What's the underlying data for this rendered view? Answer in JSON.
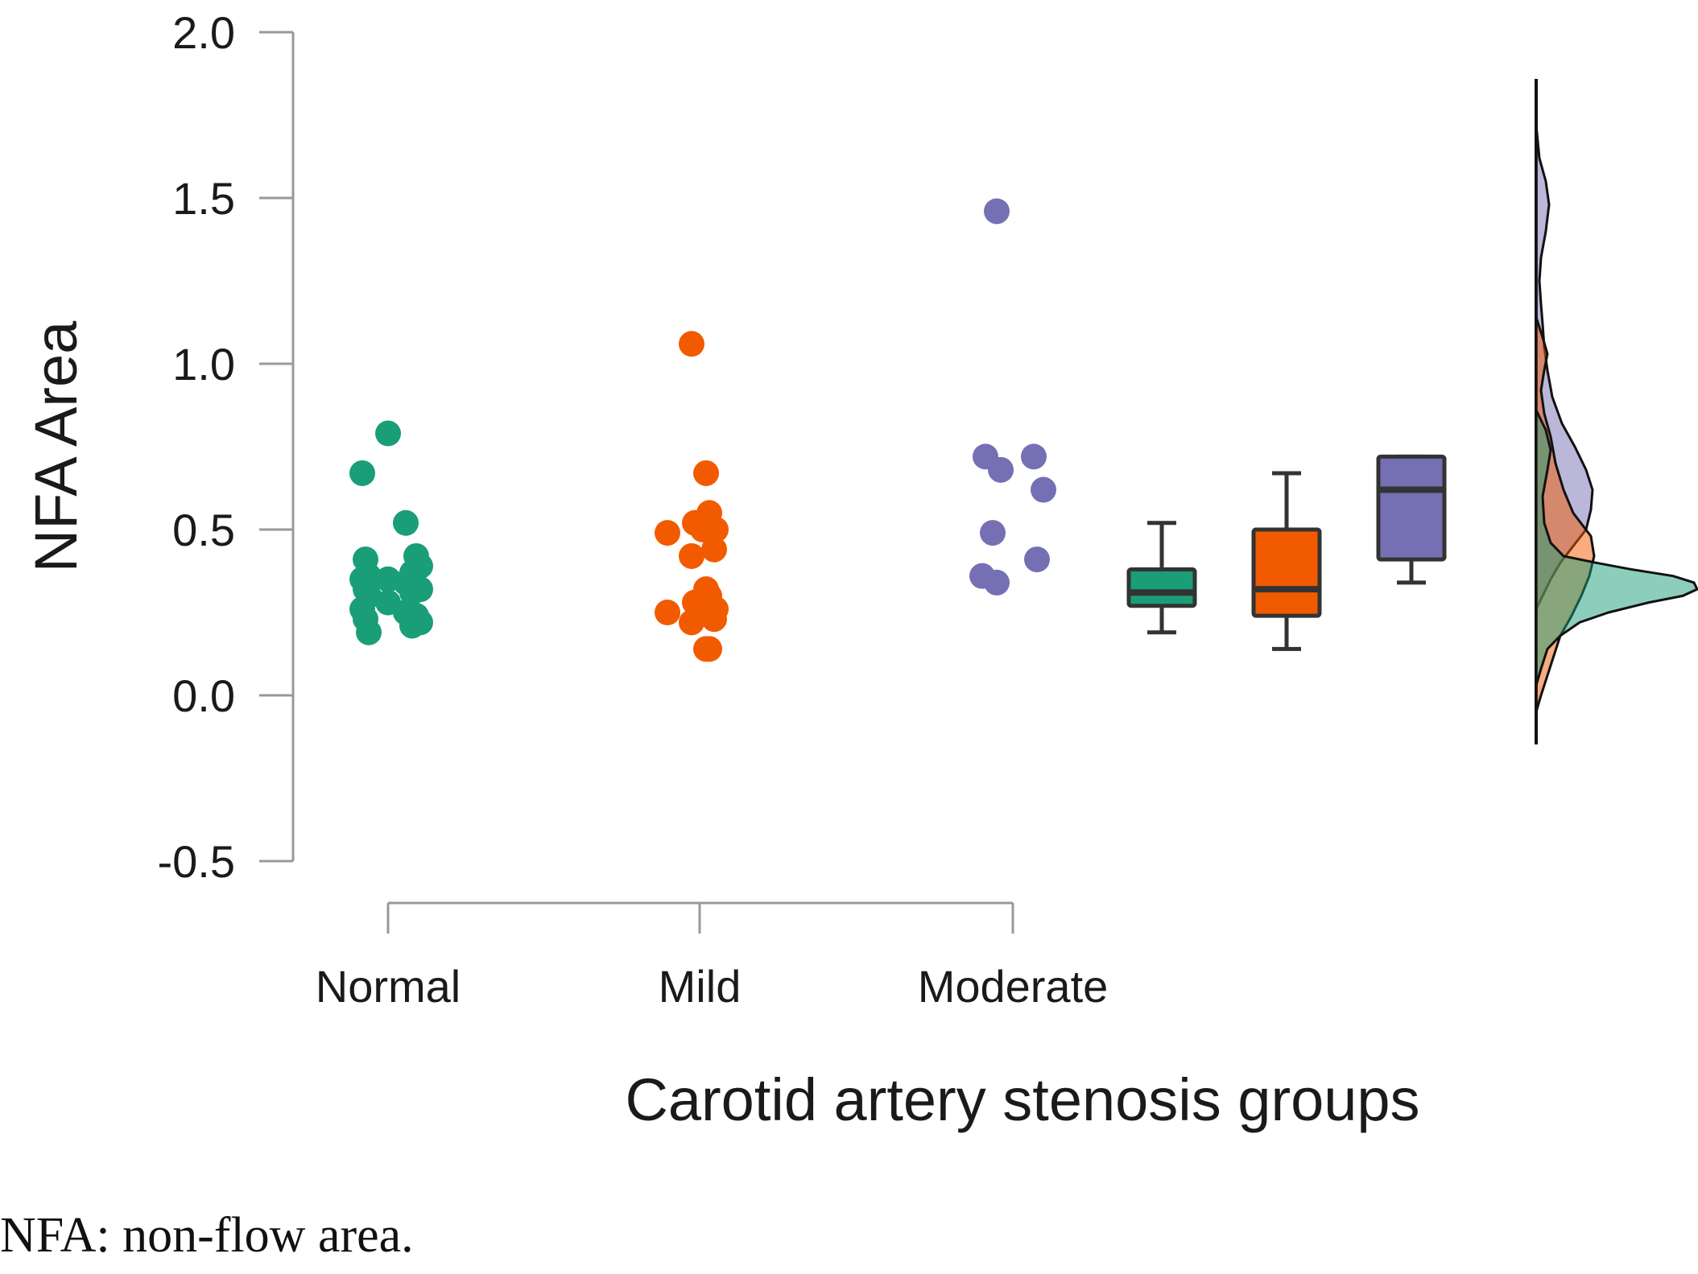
{
  "chart_data": {
    "type": "scatter",
    "title": "",
    "xlabel": "Carotid artery stenosis groups",
    "ylabel": "NFA Area",
    "ylim": [
      -0.5,
      2.0
    ],
    "yticks": [
      "2.0",
      "1.5",
      "1.0",
      "0.5",
      "0.0",
      "-0.5"
    ],
    "ytick_values": [
      2.0,
      1.5,
      1.0,
      0.5,
      0.0,
      -0.5
    ],
    "categories": [
      "Normal",
      "Mild",
      "Moderate"
    ],
    "grid": false,
    "legend": "none",
    "series": [
      {
        "name": "Normal",
        "color": "#1a9e77",
        "points": [
          0.79,
          0.67,
          0.52,
          0.42,
          0.41,
          0.39,
          0.37,
          0.36,
          0.35,
          0.35,
          0.34,
          0.33,
          0.32,
          0.32,
          0.31,
          0.3,
          0.28,
          0.26,
          0.25,
          0.24,
          0.23,
          0.22,
          0.21,
          0.19
        ],
        "box": {
          "min": 0.19,
          "q1": 0.27,
          "median": 0.31,
          "q3": 0.38,
          "max": 0.52
        }
      },
      {
        "name": "Mild",
        "color": "#f25a00",
        "points": [
          1.06,
          0.67,
          0.55,
          0.52,
          0.5,
          0.5,
          0.49,
          0.44,
          0.42,
          0.32,
          0.3,
          0.28,
          0.27,
          0.26,
          0.25,
          0.23,
          0.22,
          0.14,
          0.14
        ],
        "box": {
          "min": 0.14,
          "q1": 0.24,
          "median": 0.32,
          "q3": 0.5,
          "max": 0.67
        }
      },
      {
        "name": "Moderate",
        "color": "#7570b3",
        "points": [
          1.46,
          0.72,
          0.72,
          0.68,
          0.62,
          0.49,
          0.41,
          0.36,
          0.34
        ],
        "box": {
          "min": 0.34,
          "q1": 0.41,
          "median": 0.62,
          "q3": 0.72,
          "max": 0.72
        }
      }
    ],
    "density_curves": [
      {
        "name": "Moderate",
        "color": "#7570b3"
      },
      {
        "name": "Mild",
        "color": "#f25a00"
      },
      {
        "name": "Normal",
        "color": "#1a9e77"
      }
    ]
  },
  "caption": "NFA: non-flow area."
}
